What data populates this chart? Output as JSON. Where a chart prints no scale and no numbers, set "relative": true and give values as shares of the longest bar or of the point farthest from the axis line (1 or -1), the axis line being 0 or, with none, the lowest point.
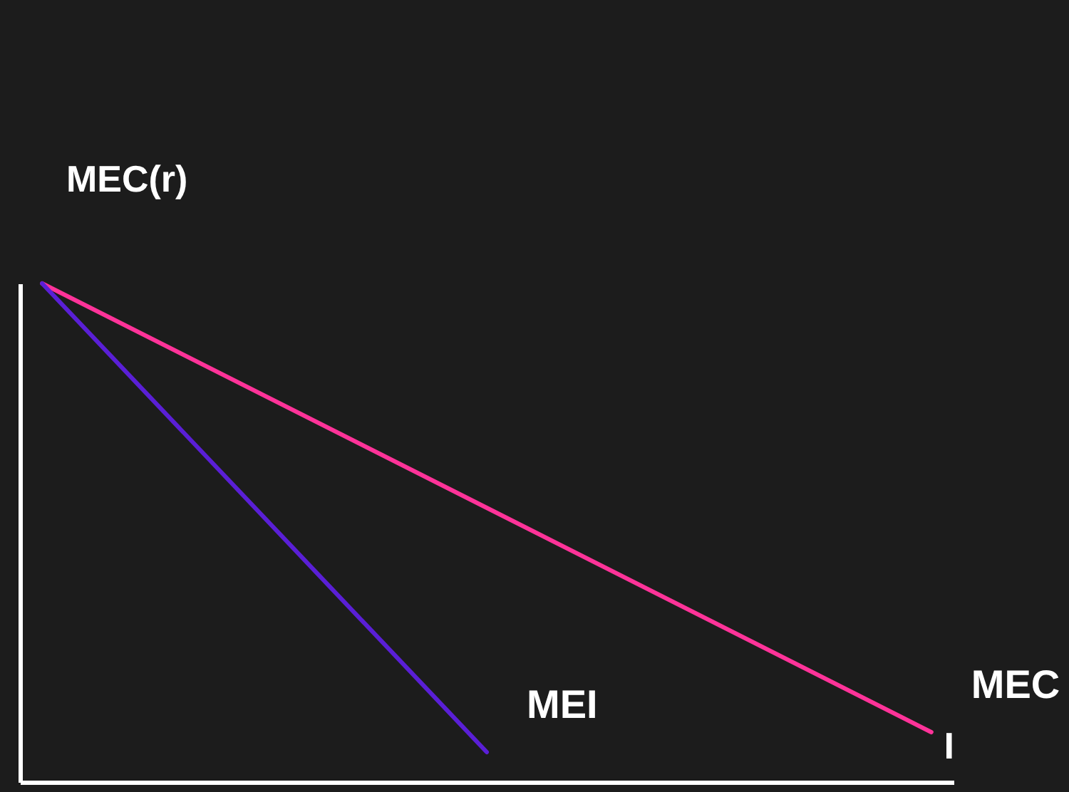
{
  "chart_data": {
    "type": "line",
    "relative": true,
    "ylabel": "MEC(r)",
    "xlabel": "I",
    "categories": [
      null,
      null,
      null
    ],
    "legend": false,
    "grid": false,
    "series": [
      {
        "name": "MEC",
        "color": "#ff3399",
        "values": [
          1,
          0.55,
          0.1
        ]
      },
      {
        "name": "MEI",
        "color": "#5a1fd6",
        "values": [
          1,
          0.06,
          null
        ]
      }
    ]
  }
}
